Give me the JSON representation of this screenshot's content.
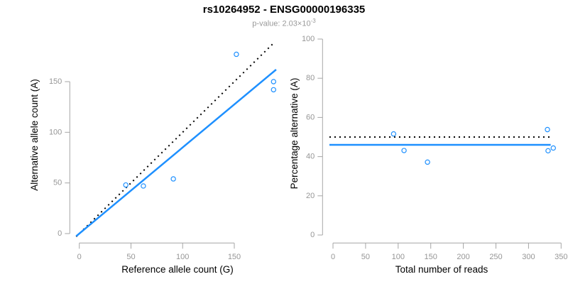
{
  "header": {
    "title": "rs10264952 - ENSG00000196335",
    "pvalue_prefix": "p-value: 2.03×10",
    "pvalue_exponent": "-3"
  },
  "colors": {
    "accent_blue": "#1E90FF",
    "reference_black": "#000000",
    "axis_line": "#A6A6A6",
    "tick_label": "#969696",
    "axis_title": "#000000",
    "subtitle_gray": "#999999"
  },
  "chart_data": [
    {
      "type": "scatter",
      "panel": "left",
      "xlabel": "Reference allele count (G)",
      "ylabel": "Alternative allele count (A)",
      "xticks": [
        0,
        50,
        100,
        150
      ],
      "yticks": [
        0,
        50,
        100,
        150
      ],
      "xlim": [
        0,
        190
      ],
      "ylim": [
        0,
        190
      ],
      "grid": false,
      "points": [
        [
          45,
          48
        ],
        [
          62,
          47
        ],
        [
          91,
          54
        ],
        [
          152,
          177
        ],
        [
          188,
          150
        ],
        [
          188,
          142
        ]
      ],
      "lines": [
        {
          "name": "identity-line",
          "slope": 1,
          "intercept": 0,
          "style": "dotted",
          "color": "#000000"
        },
        {
          "name": "fit-line",
          "slope": 0.85,
          "intercept": 0,
          "style": "solid",
          "color": "#1E90FF"
        }
      ]
    },
    {
      "type": "scatter",
      "panel": "right",
      "xlabel": "Total number of reads",
      "ylabel": "Percentage alternative (A)",
      "xticks": [
        0,
        50,
        100,
        150,
        200,
        250,
        300,
        350
      ],
      "yticks": [
        0,
        20,
        40,
        60,
        80,
        100
      ],
      "xlim": [
        0,
        350
      ],
      "ylim": [
        0,
        100
      ],
      "grid": false,
      "points": [
        [
          93,
          51.6
        ],
        [
          109,
          43.1
        ],
        [
          145,
          37.2
        ],
        [
          329,
          53.8
        ],
        [
          338,
          44.4
        ],
        [
          330,
          43.0
        ]
      ],
      "hlines": [
        {
          "name": "expected-ratio-line",
          "y": 50,
          "style": "dotted",
          "color": "#000000"
        },
        {
          "name": "observed-ratio-line",
          "y": 46,
          "style": "solid",
          "color": "#1E90FF"
        }
      ]
    }
  ]
}
